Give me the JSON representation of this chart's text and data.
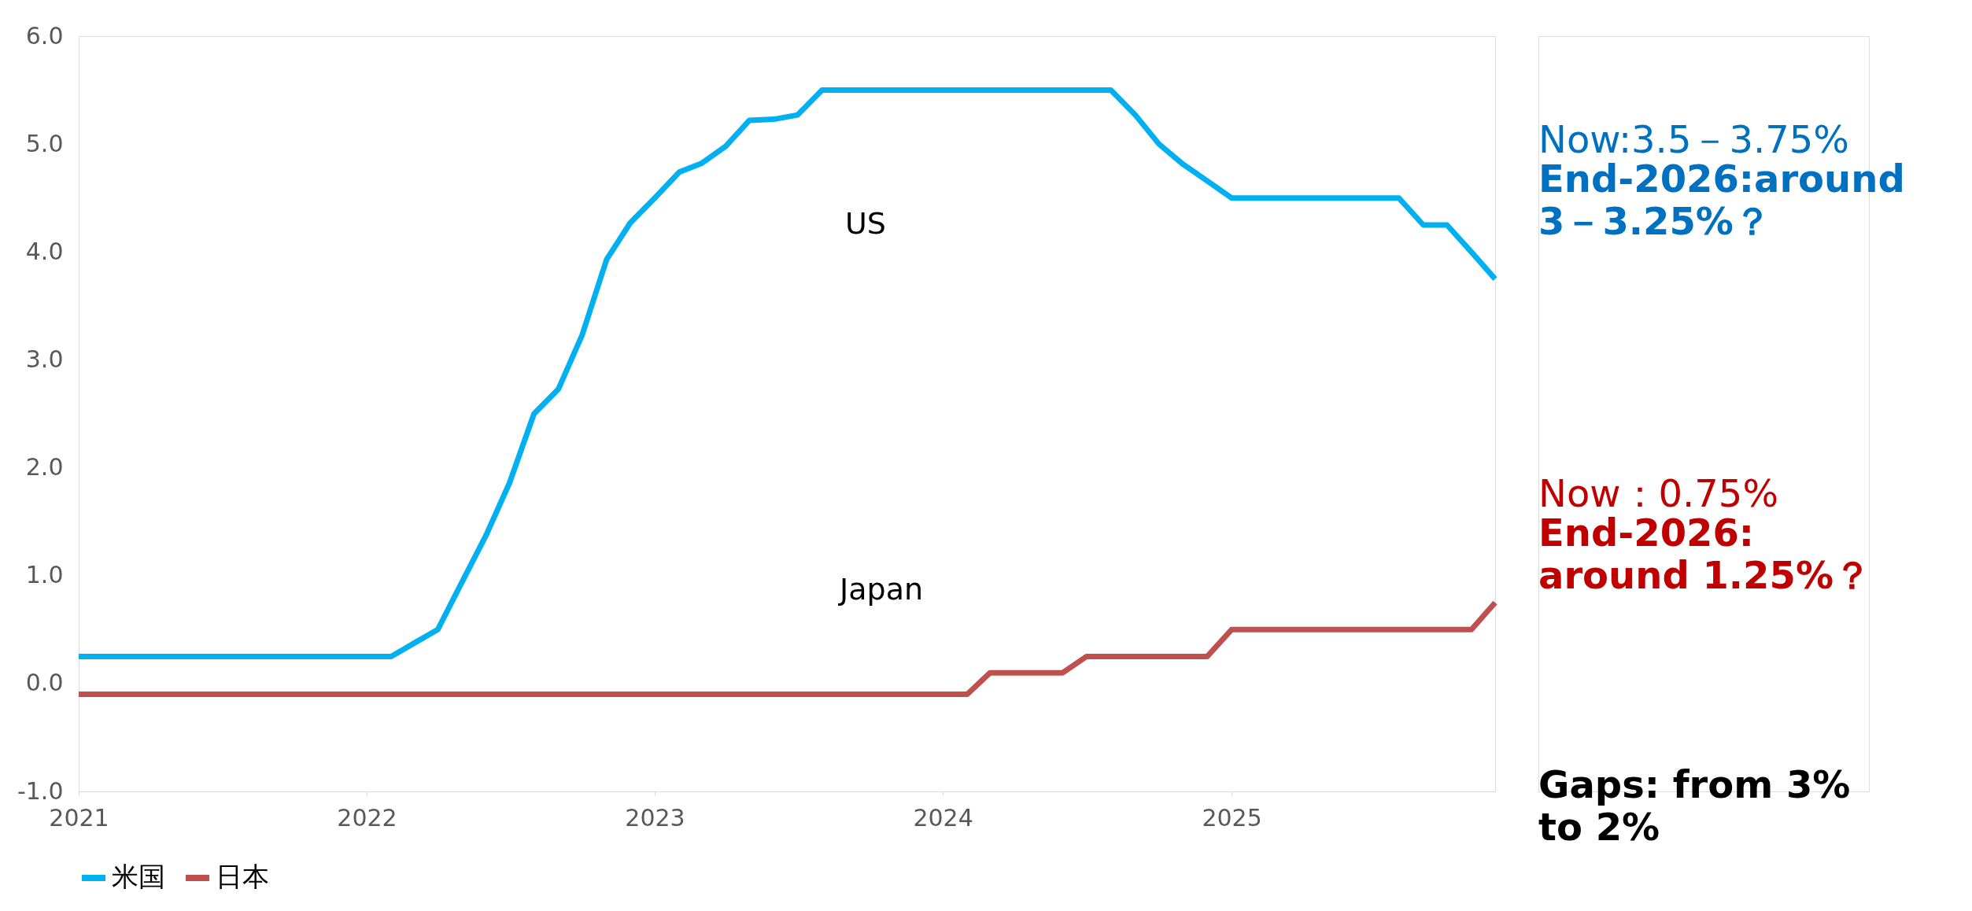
{
  "chart_data": {
    "type": "line",
    "x": [
      "2021-01",
      "2021-02",
      "2021-03",
      "2021-04",
      "2021-05",
      "2021-06",
      "2021-07",
      "2021-08",
      "2021-09",
      "2021-10",
      "2021-11",
      "2021-12",
      "2022-01",
      "2022-02",
      "2022-03",
      "2022-04",
      "2022-05",
      "2022-06",
      "2022-07",
      "2022-08",
      "2022-09",
      "2022-10",
      "2022-11",
      "2022-12",
      "2023-01",
      "2023-02",
      "2023-03",
      "2023-04",
      "2023-05",
      "2023-06",
      "2023-07",
      "2023-08",
      "2023-09",
      "2023-10",
      "2023-11",
      "2023-12",
      "2024-01",
      "2024-02",
      "2024-03",
      "2024-04",
      "2024-05",
      "2024-06",
      "2024-07",
      "2024-08",
      "2024-09",
      "2024-10",
      "2024-11",
      "2024-12",
      "2025-01",
      "2025-02",
      "2025-03",
      "2025-04",
      "2025-05",
      "2025-06",
      "2025-07",
      "2025-08",
      "2025-09",
      "2025-10",
      "2025-11",
      "2025-12"
    ],
    "series": [
      {
        "name": "米国",
        "color": "#00b0f0",
        "values": [
          0.25,
          0.25,
          0.25,
          0.25,
          0.25,
          0.25,
          0.25,
          0.25,
          0.25,
          0.25,
          0.25,
          0.25,
          0.25,
          0.25,
          0.37,
          0.5,
          0.93,
          1.37,
          1.86,
          2.5,
          2.73,
          3.23,
          3.93,
          4.27,
          4.5,
          4.74,
          4.82,
          4.98,
          5.22,
          5.23,
          5.27,
          5.5,
          5.5,
          5.5,
          5.5,
          5.5,
          5.5,
          5.5,
          5.5,
          5.5,
          5.5,
          5.5,
          5.5,
          5.5,
          5.27,
          5.0,
          4.81,
          4.66,
          4.5,
          4.5,
          4.5,
          4.5,
          4.5,
          4.5,
          4.5,
          4.5,
          4.25,
          4.25,
          4.0,
          3.75
        ]
      },
      {
        "name": "日本",
        "color": "#c0504d",
        "values": [
          -0.1,
          -0.1,
          -0.1,
          -0.1,
          -0.1,
          -0.1,
          -0.1,
          -0.1,
          -0.1,
          -0.1,
          -0.1,
          -0.1,
          -0.1,
          -0.1,
          -0.1,
          -0.1,
          -0.1,
          -0.1,
          -0.1,
          -0.1,
          -0.1,
          -0.1,
          -0.1,
          -0.1,
          -0.1,
          -0.1,
          -0.1,
          -0.1,
          -0.1,
          -0.1,
          -0.1,
          -0.1,
          -0.1,
          -0.1,
          -0.1,
          -0.1,
          -0.1,
          -0.1,
          0.1,
          0.1,
          0.1,
          0.1,
          0.25,
          0.25,
          0.25,
          0.25,
          0.25,
          0.25,
          0.5,
          0.5,
          0.5,
          0.5,
          0.5,
          0.5,
          0.5,
          0.5,
          0.5,
          0.5,
          0.5,
          0.75
        ]
      }
    ],
    "xlim": [
      "2021-01",
      "2025-12"
    ],
    "xticks": [
      "2021",
      "2022",
      "2023",
      "2024",
      "2025"
    ],
    "ylim": [
      -1.0,
      6.0
    ],
    "yticks": [
      {
        "value": -1,
        "label": "-1.0"
      },
      {
        "value": 0,
        "label": "0.0"
      },
      {
        "value": 1,
        "label": "1.0"
      },
      {
        "value": 2,
        "label": "2.0"
      },
      {
        "value": 3,
        "label": "3.0"
      },
      {
        "value": 4,
        "label": "4.0"
      },
      {
        "value": 5,
        "label": "5.0"
      },
      {
        "value": 6,
        "label": "6.0"
      }
    ],
    "annotations": [
      "US",
      "Japan",
      "Now:3.5－3.75%",
      "End-2026:around 3－3.25%？",
      "Now：0.75%",
      "End-2026: around 1.25%？",
      "Gaps: from 3% to 2%"
    ],
    "legend": "bottom",
    "grid": false,
    "marker": "none",
    "line_style": "solid"
  }
}
